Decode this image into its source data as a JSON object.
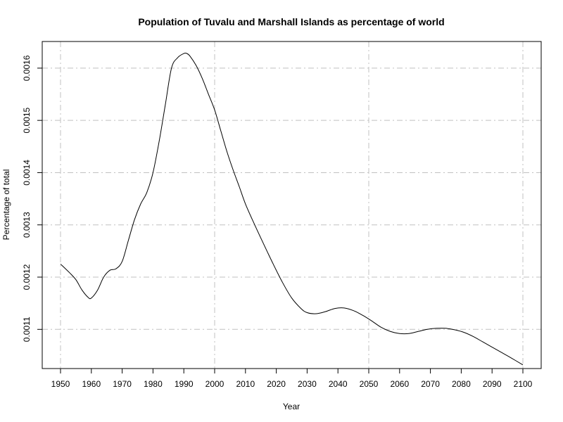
{
  "chart_data": {
    "type": "line",
    "title": "Population of Tuvalu and Marshall Islands as percentage of world",
    "xlabel": "Year",
    "ylabel": "Percentage of total",
    "xlim": [
      1950,
      2100
    ],
    "ylim": [
      0.001025,
      0.001651
    ],
    "x_ticks": [
      1950,
      1960,
      1970,
      1980,
      1990,
      2000,
      2010,
      2020,
      2030,
      2040,
      2050,
      2060,
      2070,
      2080,
      2090,
      2100
    ],
    "x_tick_labels": [
      "1950",
      "1960",
      "1970",
      "1980",
      "1990",
      "2000",
      "2010",
      "2020",
      "2030",
      "2040",
      "2050",
      "2060",
      "2070",
      "2080",
      "2090",
      "2100"
    ],
    "y_ticks": [
      0.0011,
      0.0012,
      0.0013,
      0.0014,
      0.0015,
      0.0016
    ],
    "y_tick_labels": [
      "0.0011",
      "0.0012",
      "0.0013",
      "0.0014",
      "0.0015",
      "0.0016"
    ],
    "grid": true,
    "series": [
      {
        "x": [
          1950,
          1953,
          1955,
          1957,
          1959,
          1960,
          1962,
          1964,
          1966,
          1968,
          1970,
          1972,
          1974,
          1976,
          1978,
          1980,
          1982,
          1984,
          1986,
          1988,
          1990,
          1991,
          1992,
          1994,
          1996,
          1998,
          2000,
          2002,
          2004,
          2006,
          2008,
          2010,
          2013,
          2016,
          2019,
          2022,
          2025,
          2028,
          2030,
          2033,
          2036,
          2039,
          2042,
          2045,
          2048,
          2051,
          2054,
          2057,
          2060,
          2063,
          2066,
          2069,
          2072,
          2075,
          2078,
          2081,
          2084,
          2087,
          2090,
          2093,
          2096,
          2100
        ],
        "y": [
          0.001225,
          0.001208,
          0.001195,
          0.001175,
          0.001161,
          0.00116,
          0.001175,
          0.0012,
          0.001213,
          0.001216,
          0.00123,
          0.00127,
          0.00131,
          0.00134,
          0.001362,
          0.0014,
          0.00146,
          0.00153,
          0.0016,
          0.00162,
          0.001628,
          0.001628,
          0.001623,
          0.001605,
          0.00158,
          0.00155,
          0.00152,
          0.00148,
          0.00144,
          0.001405,
          0.001373,
          0.00134,
          0.0013,
          0.001262,
          0.001225,
          0.00119,
          0.00116,
          0.00114,
          0.001132,
          0.00113,
          0.001134,
          0.00114,
          0.001141,
          0.001136,
          0.001127,
          0.001116,
          0.001104,
          0.001096,
          0.001092,
          0.001092,
          0.001096,
          0.0011,
          0.001102,
          0.001102,
          0.001099,
          0.001094,
          0.001086,
          0.001076,
          0.001066,
          0.001056,
          0.001046,
          0.001032
        ]
      }
    ]
  },
  "colors": {
    "line": "#000000",
    "grid": "#c0c0c0",
    "background": "#ffffff"
  }
}
